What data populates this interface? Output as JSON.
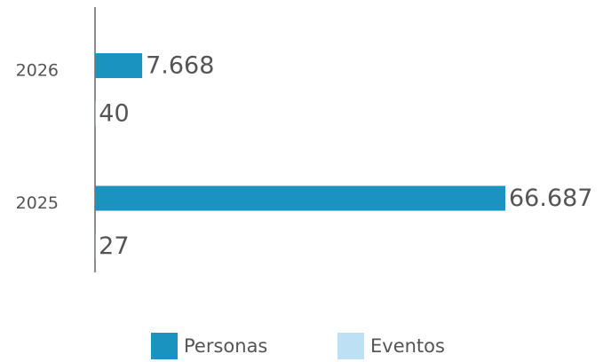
{
  "chart_data": {
    "type": "bar",
    "orientation": "horizontal",
    "categories": [
      "2026",
      "2025"
    ],
    "series": [
      {
        "name": "Personas",
        "color": "#1a93c1",
        "values": [
          7668,
          66687
        ],
        "value_labels": [
          "7.668",
          "66.687"
        ]
      },
      {
        "name": "Eventos",
        "color": "#bde0f5",
        "values": [
          40,
          27
        ],
        "value_labels": [
          "40",
          "27"
        ]
      }
    ],
    "legend": "bottom"
  }
}
